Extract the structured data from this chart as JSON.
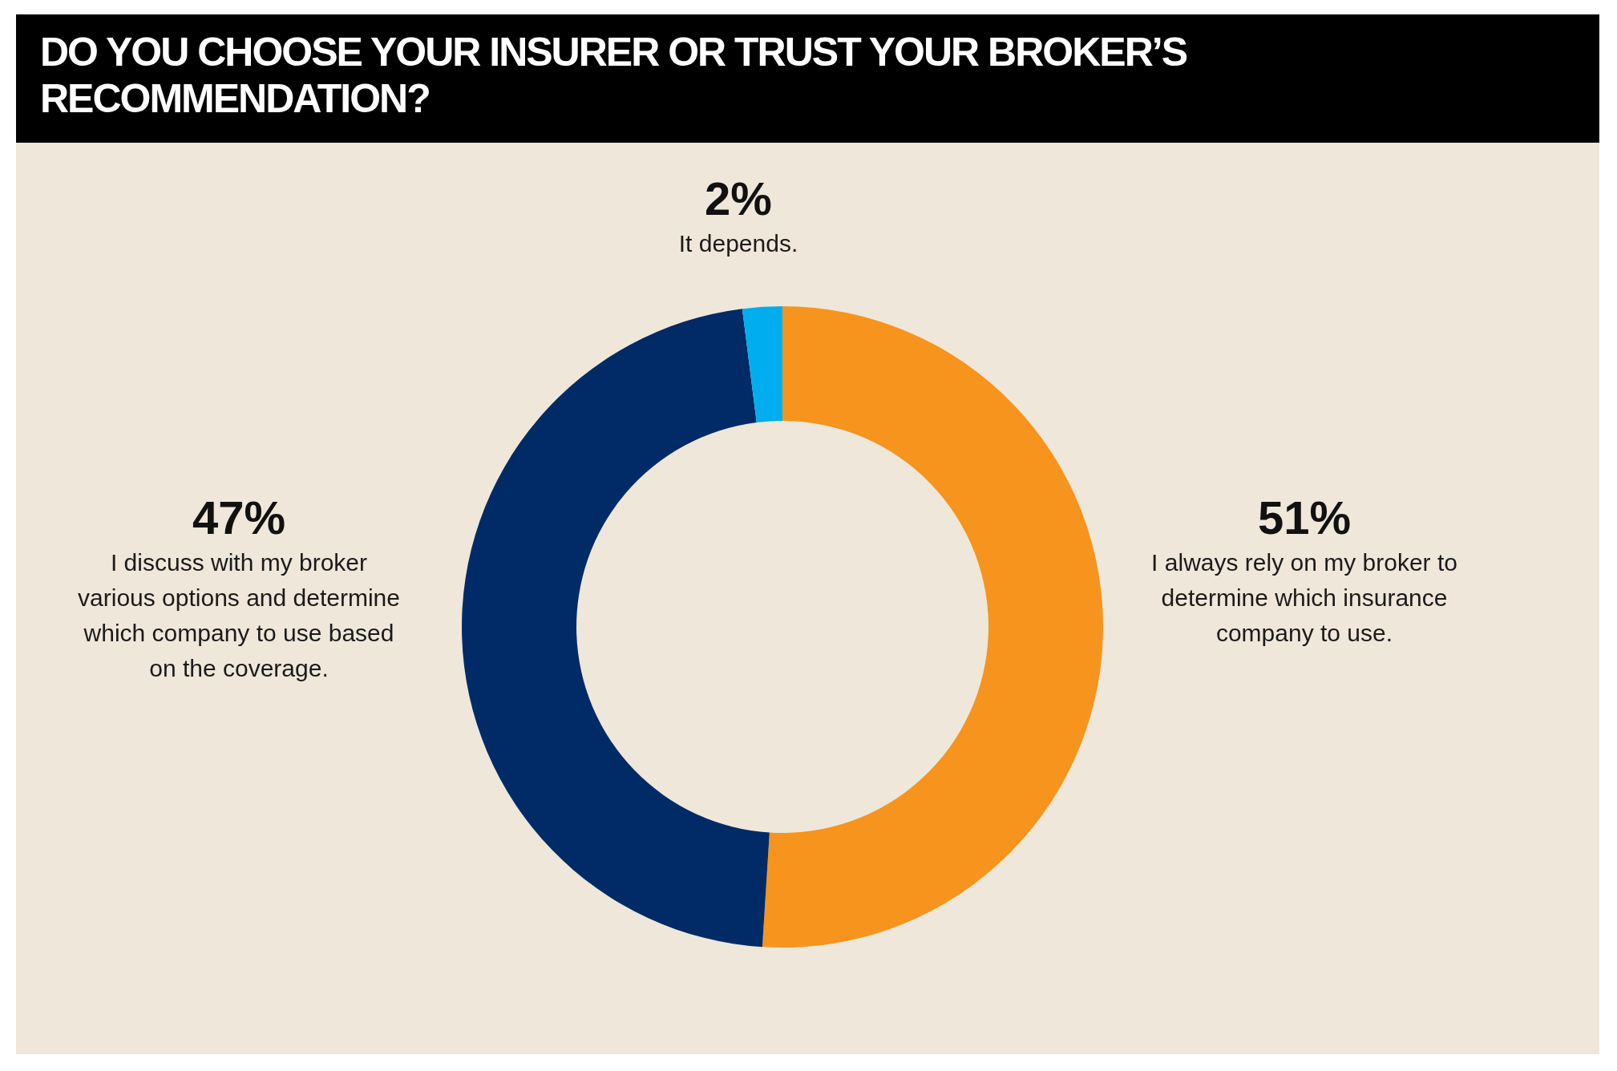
{
  "chart_data": {
    "type": "donut",
    "title": "DO YOU CHOOSE YOUR INSURER OR TRUST YOUR BROKER’S RECOMMENDATION?",
    "categories": [
      "I always rely on my broker to\ndetermine which insurance\ncompany to use.",
      "I discuss with my broker\nvarious options and determine\nwhich company to use based\non the coverage.",
      "It depends."
    ],
    "values": [
      51,
      47,
      2
    ],
    "value_labels": [
      "51%",
      "47%",
      "2%"
    ],
    "colors": [
      "#f7941d",
      "#002b66",
      "#00aeef"
    ]
  }
}
